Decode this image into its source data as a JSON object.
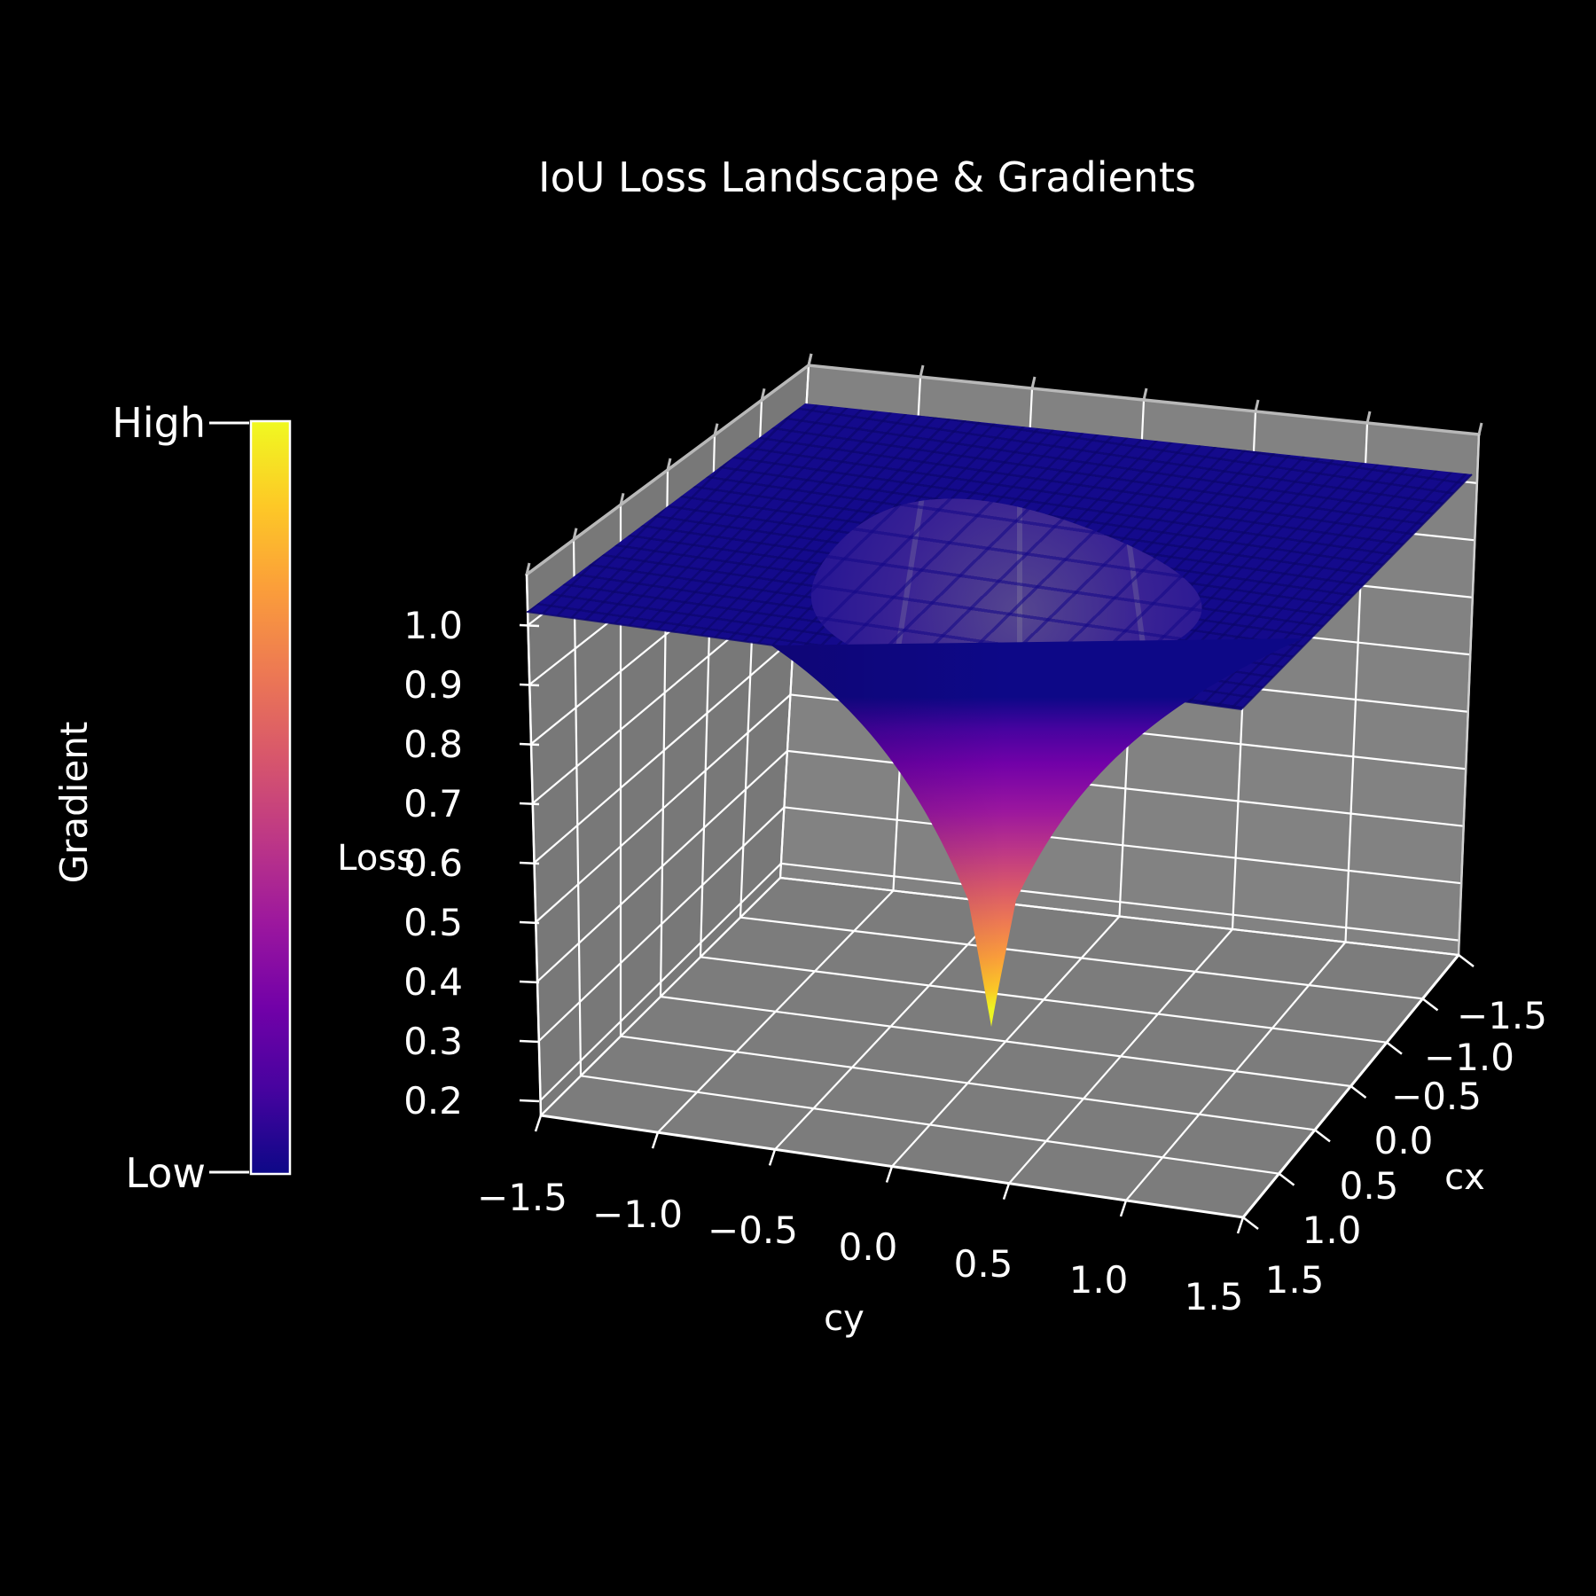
{
  "title": "IoU Loss Landscape & Gradients",
  "figure": {
    "background": "#000000",
    "pane_color_left": "#787878",
    "pane_color_right": "#828282",
    "pane_color_floor": "#7c7c7c",
    "grid_color": "#ffffff",
    "frame_color": "#b8b8b8",
    "text_color": "#ffffff",
    "plateau_color": "#140a8c"
  },
  "colorbar": {
    "label": "Gradient",
    "top_label": "High",
    "bottom_label": "Low",
    "colormap": "plasma",
    "plasma_colors": [
      "#0d0887",
      "#46039f",
      "#7201a8",
      "#9c179e",
      "#bd3786",
      "#d8576b",
      "#ed7953",
      "#fb9e3a",
      "#fdc926",
      "#f0f921"
    ]
  },
  "chart_data": {
    "type": "surface",
    "title": "IoU Loss Landscape & Gradients",
    "x_axis": {
      "label": "cy",
      "range": [
        -1.5,
        1.5
      ],
      "tick_values": [
        -1.5,
        -1.0,
        -0.5,
        0.0,
        0.5,
        1.0,
        1.5
      ],
      "tick_labels": [
        "−1.5",
        "−1.0",
        "−0.5",
        "0.0",
        "0.5",
        "1.0",
        "1.5"
      ]
    },
    "y_axis": {
      "label": "cx",
      "range": [
        -1.5,
        1.5
      ],
      "tick_values": [
        -1.5,
        -1.0,
        -0.5,
        0.0,
        0.5,
        1.0,
        1.5
      ],
      "tick_labels": [
        "−1.5",
        "−1.0",
        "−0.5",
        "0.0",
        "0.5",
        "1.0",
        "1.5"
      ]
    },
    "z_axis": {
      "label": "Loss",
      "range": [
        0.15,
        1.05
      ],
      "tick_values": [
        1.0,
        0.9,
        0.8,
        0.7,
        0.6,
        0.5,
        0.4,
        0.3,
        0.2
      ],
      "tick_labels": [
        "1.0",
        "0.9",
        "0.8",
        "0.7",
        "0.6",
        "0.5",
        "0.4",
        "0.3",
        "0.2"
      ]
    },
    "colormap": "plasma",
    "color_encodes": "gradient magnitude (Low = dark blue plateau, High = yellow funnel tip)",
    "surface": {
      "description": "IoU loss (1 − IoU) over predicted box center offsets (cx, cy): flat plateau at loss 1.0 where boxes do not overlap, steep funnel down to the minimum at the aligned center (0, 0).",
      "plateau_value": 1.0,
      "min_value": 0.2,
      "min_at": [
        0.0,
        0.0
      ],
      "radial_profile": {
        "center_offset": [
          0.0,
          0.25,
          0.5,
          0.75,
          1.0,
          1.25,
          1.5
        ],
        "loss": [
          0.2,
          0.52,
          0.78,
          0.94,
          1.0,
          1.0,
          1.0
        ]
      }
    }
  }
}
